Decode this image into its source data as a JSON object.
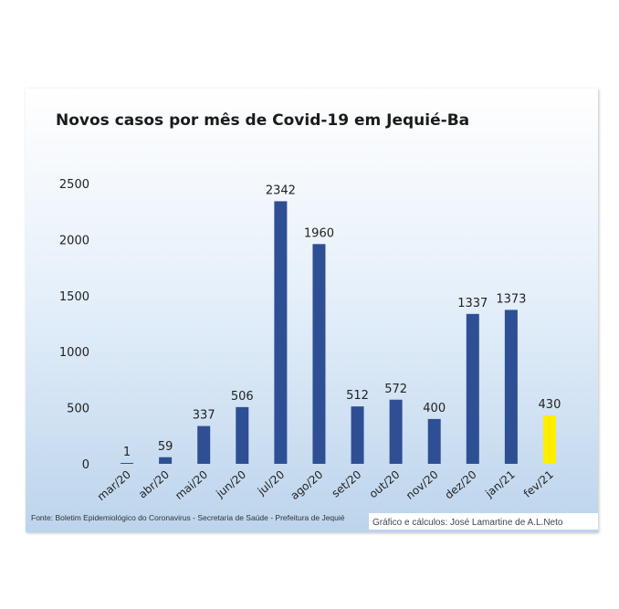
{
  "chart_data": {
    "type": "bar",
    "title": "Novos casos por mês de Covid-19 em Jequié-Ba",
    "categories": [
      "mar/20",
      "abr/20",
      "mai/20",
      "jun/20",
      "jul/20",
      "ago/20",
      "set/20",
      "out/20",
      "nov/20",
      "dez/20",
      "jan/21",
      "fev/21"
    ],
    "values": [
      1,
      59,
      337,
      506,
      2342,
      1960,
      512,
      572,
      400,
      1337,
      1373,
      430
    ],
    "data_labels": [
      "1",
      "59",
      "337",
      "506",
      "2342",
      "1960",
      "512",
      "572",
      "400",
      "1337",
      "1373",
      "430"
    ],
    "yticks": [
      "0",
      "500",
      "1000",
      "1500",
      "2000",
      "2500"
    ],
    "ylim": [
      0,
      2500
    ],
    "xlabel": "",
    "ylabel": "",
    "grid": false,
    "legend": "none",
    "bar_color": "#2e4f94",
    "highlight_color": "#ffee00",
    "highlight_index": 11,
    "source_note": "Fonte: Boletim Epidemiológico do Coronavirus - Secretaria de Saúde - Prefeitura de Jequié",
    "credit_note": "Gráfico e cálculos: José Lamartine de A.L.Neto"
  }
}
